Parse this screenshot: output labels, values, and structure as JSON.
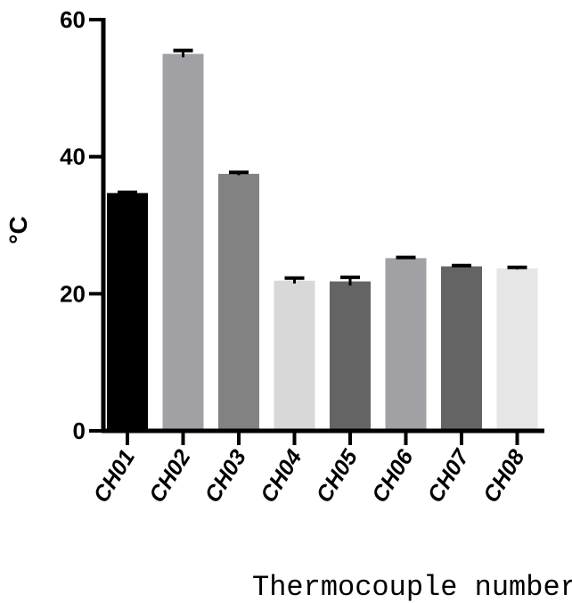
{
  "chart_data": {
    "type": "bar",
    "xlabel": "Thermocouple number",
    "ylabel": "°C",
    "ylim": [
      0,
      60
    ],
    "yticks": [
      0,
      20,
      40,
      60
    ],
    "grid": false,
    "categories": [
      "CH01",
      "CH02",
      "CH03",
      "CH04",
      "CH05",
      "CH06",
      "CH07",
      "CH08"
    ],
    "values": [
      34.7,
      55.0,
      37.5,
      21.9,
      21.8,
      25.2,
      24.0,
      23.7
    ],
    "errors": [
      0.1,
      0.5,
      0.2,
      0.4,
      0.6,
      0.1,
      0.1,
      0.15
    ],
    "colors": [
      "#000000",
      "#a1a1a5",
      "#828282",
      "#d8d8d8",
      "#646464",
      "#a1a1a5",
      "#646464",
      "#e6e6e6"
    ]
  }
}
